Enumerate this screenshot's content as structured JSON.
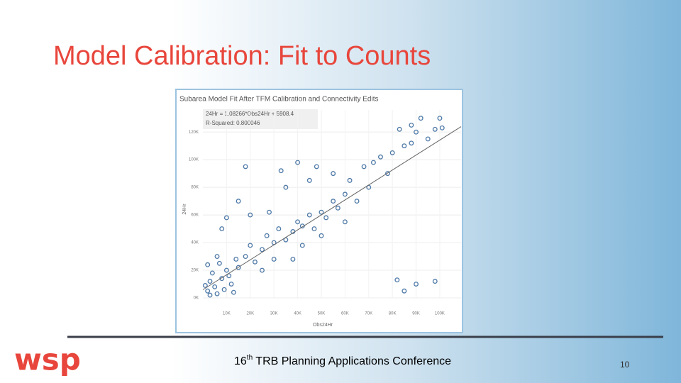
{
  "slide": {
    "title": "Model Calibration:  Fit to Counts",
    "footer": {
      "ordinal": "16",
      "suffix": "th",
      "text": " TRB Planning Applications Conference"
    },
    "page_number": "10",
    "logo": "wsp"
  },
  "chart_data": {
    "type": "scatter",
    "title": "Subarea Model Fit After TFM Calibration and Connectivity Edits",
    "annotations": [
      "24Hr = 1.08266*Obs24Hr + 5908.4",
      "R-Squared: 0.800046"
    ],
    "x_label": "Obs24Hr",
    "y_label": "24Hr",
    "color": "#4e79a7",
    "trend": {
      "slope": 1.08266,
      "intercept": 5908.4
    },
    "xlim": [
      0,
      109000
    ],
    "ylim": [
      0,
      136000
    ],
    "xticks": [
      {
        "value": 10000,
        "label": "10K"
      },
      {
        "value": 20000,
        "label": "20K"
      },
      {
        "value": 30000,
        "label": "30K"
      },
      {
        "value": 40000,
        "label": "40K"
      },
      {
        "value": 50000,
        "label": "50K"
      },
      {
        "value": 60000,
        "label": "60K"
      },
      {
        "value": 70000,
        "label": "70K"
      },
      {
        "value": 80000,
        "label": "80K"
      },
      {
        "value": 90000,
        "label": "90K"
      },
      {
        "value": 100000,
        "label": "100K"
      }
    ],
    "yticks": [
      {
        "value": 0,
        "label": "0K"
      },
      {
        "value": 20000,
        "label": "20K"
      },
      {
        "value": 40000,
        "label": "40K"
      },
      {
        "value": 60000,
        "label": "60K"
      },
      {
        "value": 80000,
        "label": "80K"
      },
      {
        "value": 100000,
        "label": "100K"
      },
      {
        "value": 120000,
        "label": "120K"
      }
    ],
    "x": [
      2000,
      3000,
      5000,
      4000,
      6000,
      8000,
      10000,
      7000,
      12000,
      9000,
      15000,
      14000,
      11000,
      3000,
      1000,
      6000,
      13000,
      2000,
      18000,
      20000,
      22000,
      25000,
      27000,
      30000,
      32000,
      35000,
      38000,
      40000,
      42000,
      45000,
      47000,
      50000,
      52000,
      55000,
      57000,
      60000,
      35000,
      28000,
      20000,
      15000,
      10000,
      8000,
      25000,
      30000,
      45000,
      48000,
      55000,
      62000,
      65000,
      70000,
      68000,
      72000,
      75000,
      78000,
      80000,
      85000,
      88000,
      90000,
      92000,
      95000,
      98000,
      100000,
      101000,
      83000,
      88000,
      82000,
      85000,
      90000,
      98000,
      38000,
      42000,
      50000,
      60000,
      33000,
      40000,
      18000
    ],
    "values": [
      5000,
      12000,
      8000,
      18000,
      3000,
      14000,
      20000,
      25000,
      10000,
      6000,
      22000,
      28000,
      16000,
      2000,
      9000,
      30000,
      4000,
      24000,
      30000,
      38000,
      26000,
      35000,
      45000,
      40000,
      50000,
      42000,
      48000,
      55000,
      52000,
      60000,
      50000,
      62000,
      58000,
      70000,
      65000,
      75000,
      80000,
      62000,
      60000,
      70000,
      58000,
      50000,
      20000,
      28000,
      85000,
      95000,
      90000,
      85000,
      70000,
      80000,
      95000,
      98000,
      102000,
      90000,
      105000,
      110000,
      112000,
      120000,
      130000,
      115000,
      122000,
      130000,
      123000,
      122000,
      125000,
      13000,
      5000,
      10000,
      12000,
      28000,
      38000,
      45000,
      55000,
      92000,
      98000,
      95000
    ]
  }
}
